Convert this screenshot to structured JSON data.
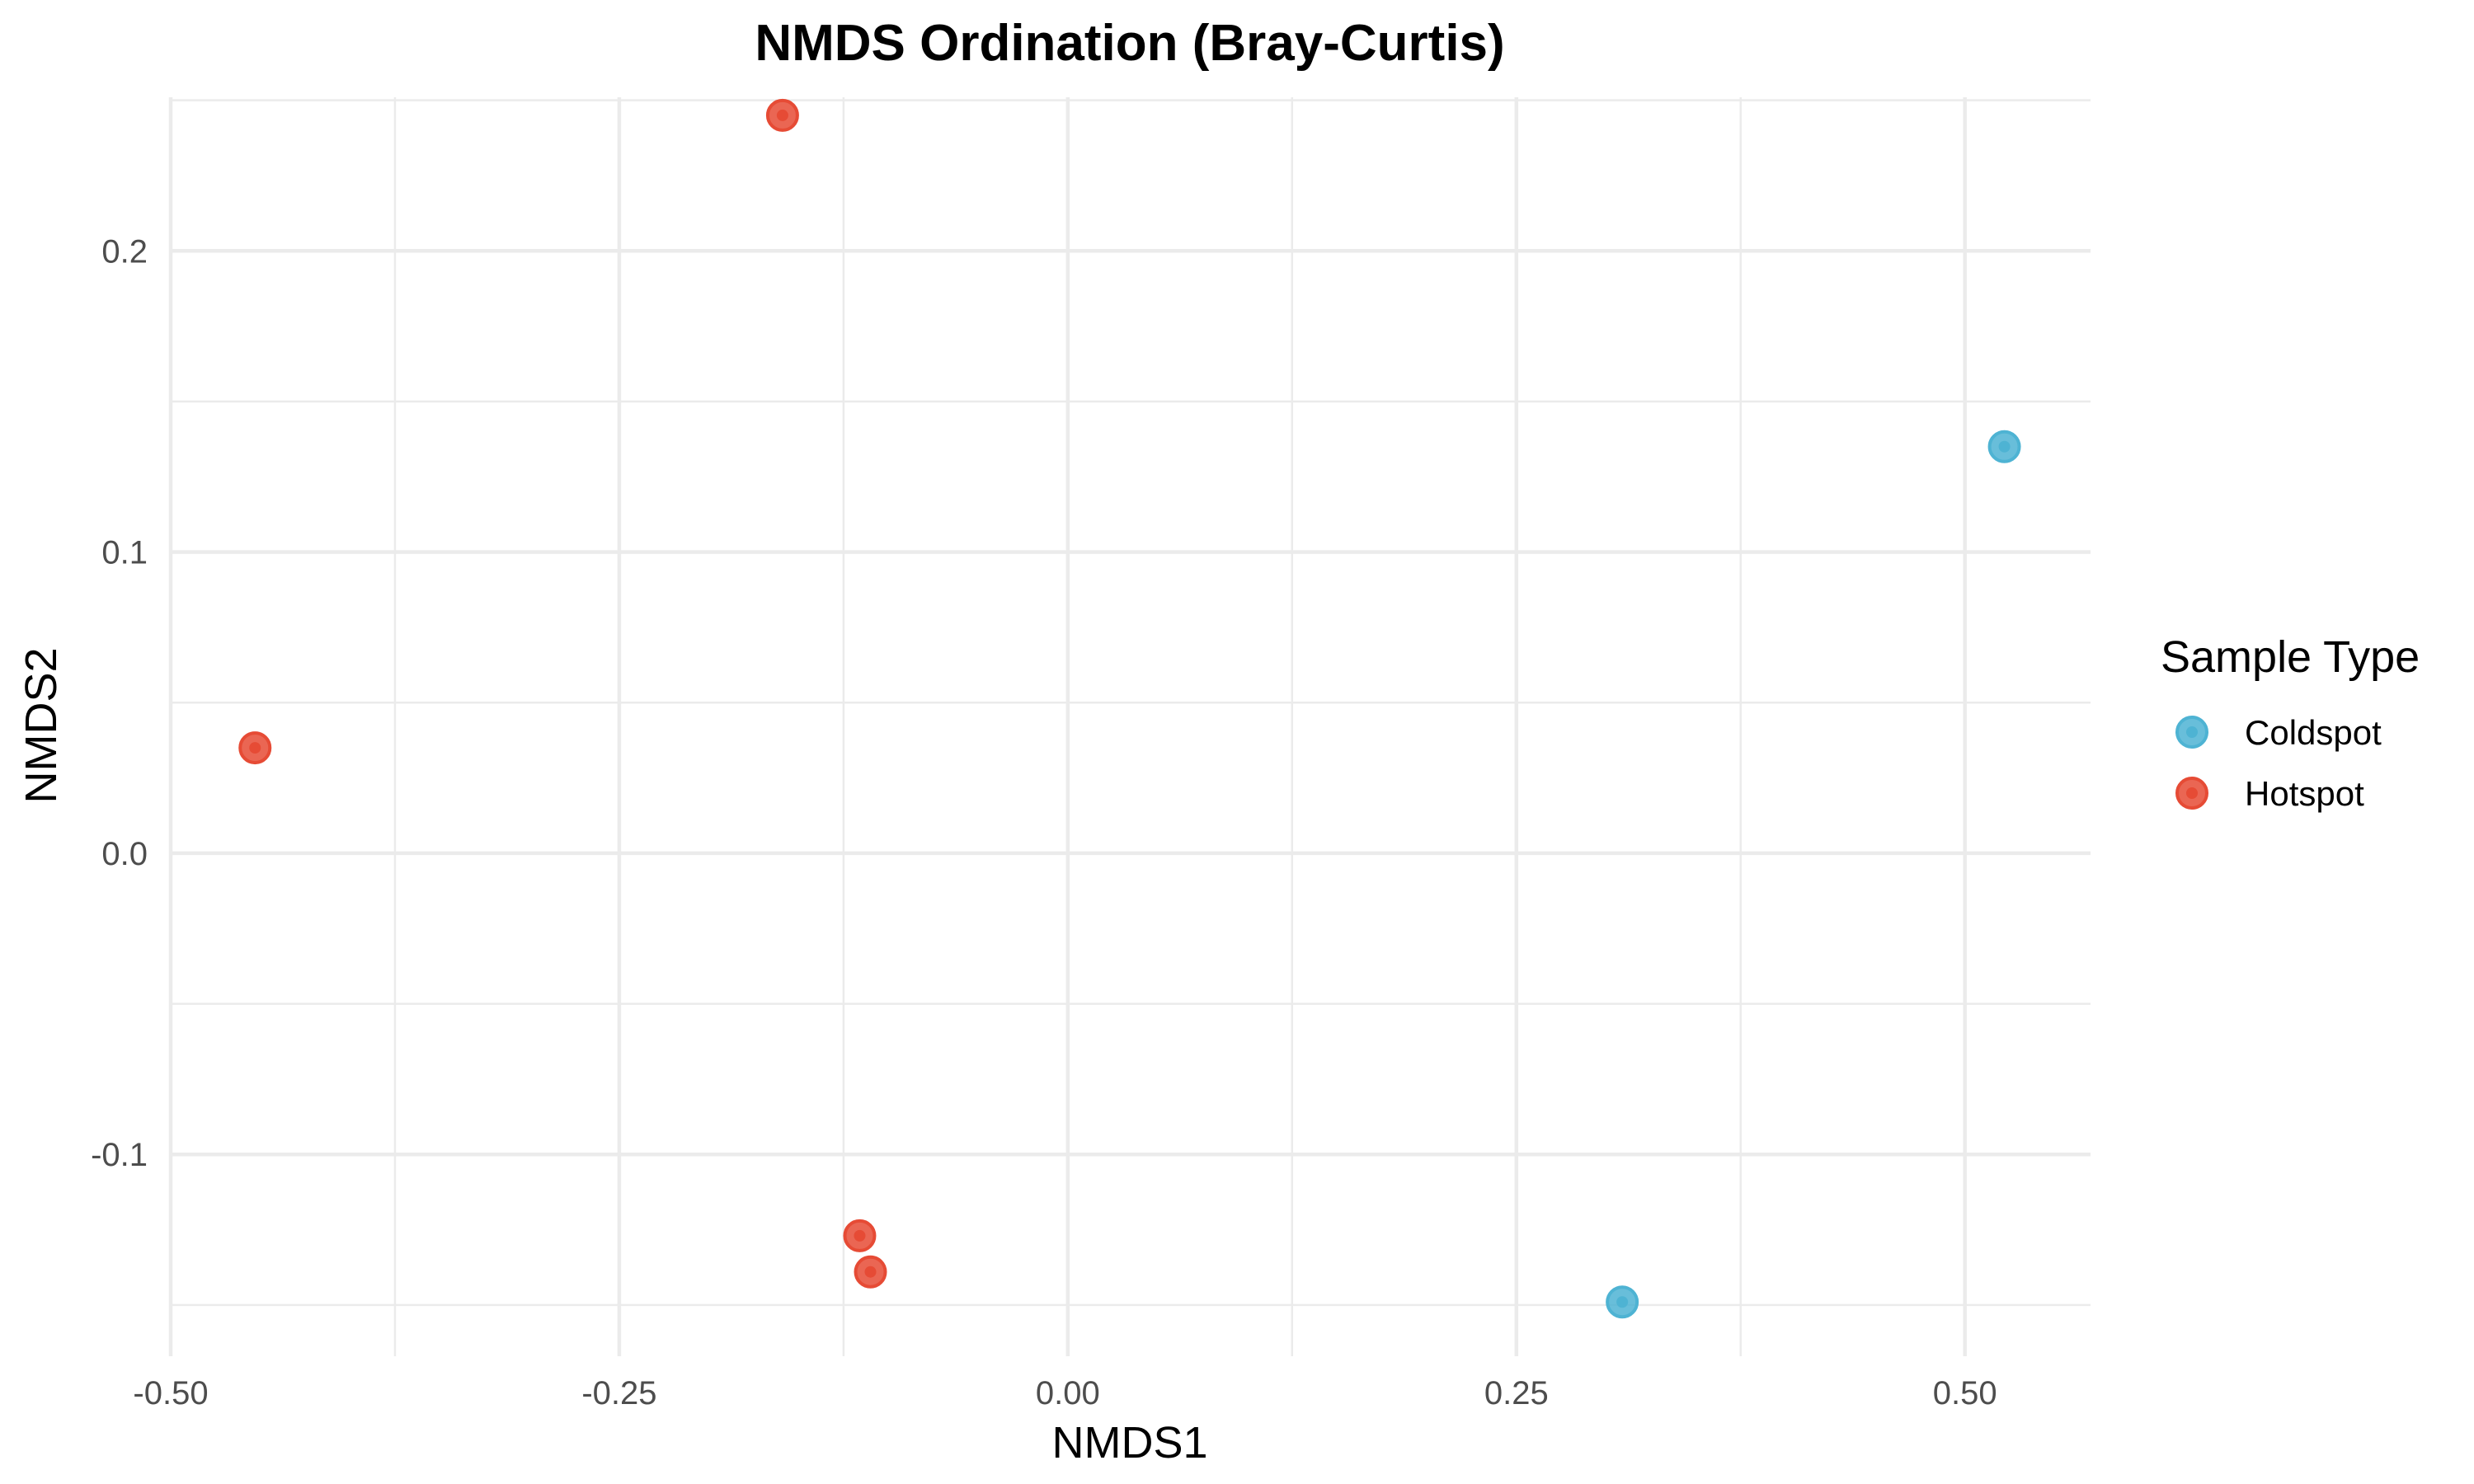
{
  "chart_data": {
    "type": "scatter",
    "title": "NMDS Ordination (Bray-Curtis)",
    "xlabel": "NMDS1",
    "ylabel": "NMDS2",
    "xlim": [
      -0.5,
      0.57
    ],
    "ylim": [
      -0.167,
      0.251
    ],
    "x_ticks": [
      -0.5,
      -0.25,
      0.0,
      0.25,
      0.5
    ],
    "x_tick_labels": [
      "-0.50",
      "-0.25",
      "0.00",
      "0.25",
      "0.50"
    ],
    "y_ticks": [
      -0.1,
      0.0,
      0.1,
      0.2
    ],
    "y_tick_labels": [
      "-0.1",
      "0.0",
      "0.1",
      "0.2"
    ],
    "grid": true,
    "legend": {
      "title": "Sample Type",
      "position": "right"
    },
    "series": [
      {
        "name": "Coldspot",
        "color": "#4EB3D3",
        "points": [
          {
            "x": 0.522,
            "y": 0.135
          },
          {
            "x": 0.309,
            "y": -0.149
          }
        ]
      },
      {
        "name": "Hotspot",
        "color": "#E64B35",
        "points": [
          {
            "x": -0.159,
            "y": 0.245
          },
          {
            "x": -0.453,
            "y": 0.035
          },
          {
            "x": -0.116,
            "y": -0.127
          },
          {
            "x": -0.11,
            "y": -0.139
          }
        ]
      }
    ]
  }
}
